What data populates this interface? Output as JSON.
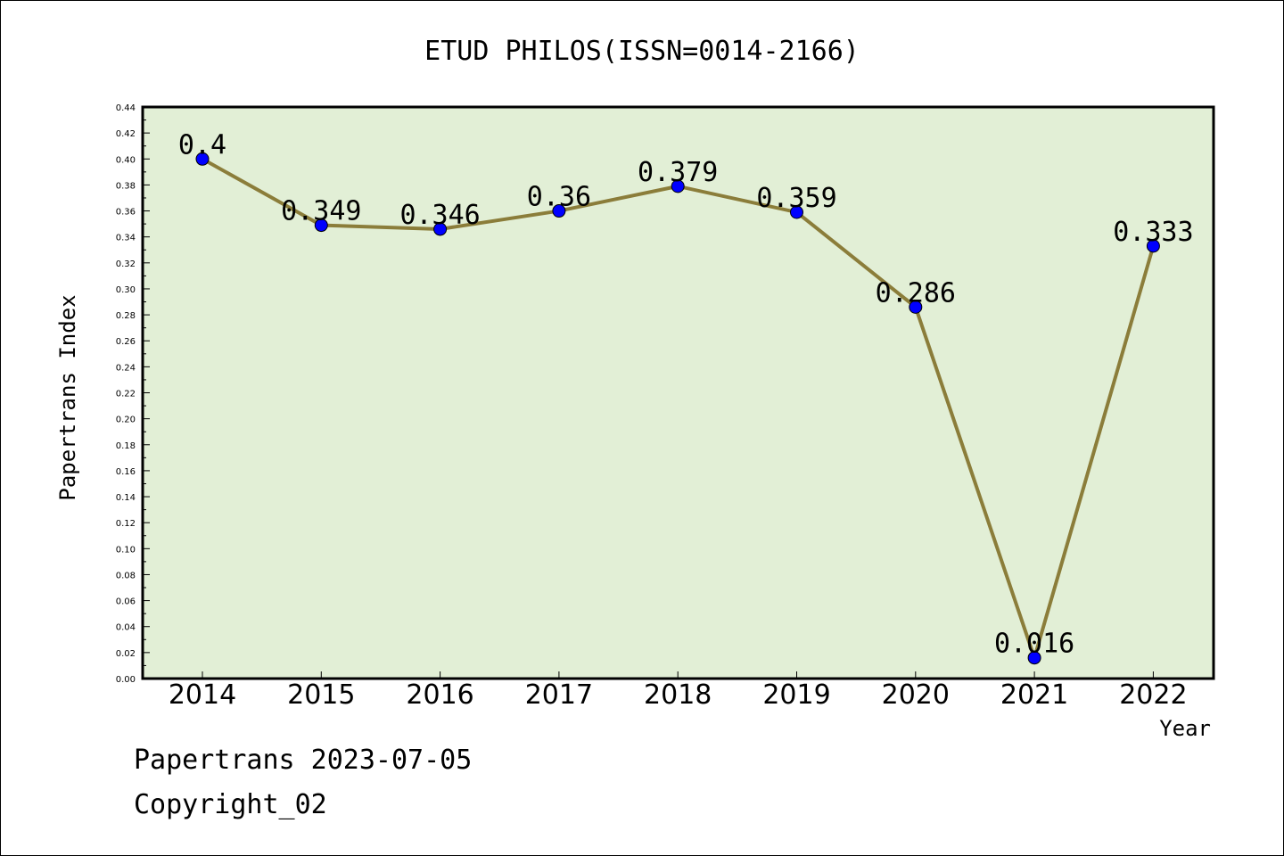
{
  "chart_data": {
    "type": "line",
    "title": "ETUD PHILOS(ISSN=0014-2166)",
    "xlabel": "Year",
    "ylabel": "Papertrans Index",
    "categories": [
      "2014",
      "2015",
      "2016",
      "2017",
      "2018",
      "2019",
      "2020",
      "2021",
      "2022"
    ],
    "values": [
      0.4,
      0.349,
      0.346,
      0.36,
      0.379,
      0.359,
      0.286,
      0.016,
      0.333
    ],
    "value_labels": [
      "0.4",
      "0.349",
      "0.346",
      "0.36",
      "0.379",
      "0.359",
      "0.286",
      "0.016",
      "0.333"
    ],
    "ylim": [
      0,
      0.44
    ],
    "yticks": [
      "0.00",
      "0.02",
      "0.04",
      "0.06",
      "0.08",
      "0.10",
      "0.12",
      "0.14",
      "0.16",
      "0.18",
      "0.20",
      "0.22",
      "0.24",
      "0.26",
      "0.28",
      "0.30",
      "0.32",
      "0.34",
      "0.36",
      "0.38",
      "0.40",
      "0.42",
      "0.44"
    ],
    "grid": false,
    "colors": {
      "plot_background": "#e2efd6",
      "line": "#8b7d3a",
      "marker": "#0000ff"
    }
  },
  "footer": {
    "date_line": "Papertrans 2023-07-05",
    "copyright": "Copyright_02"
  }
}
